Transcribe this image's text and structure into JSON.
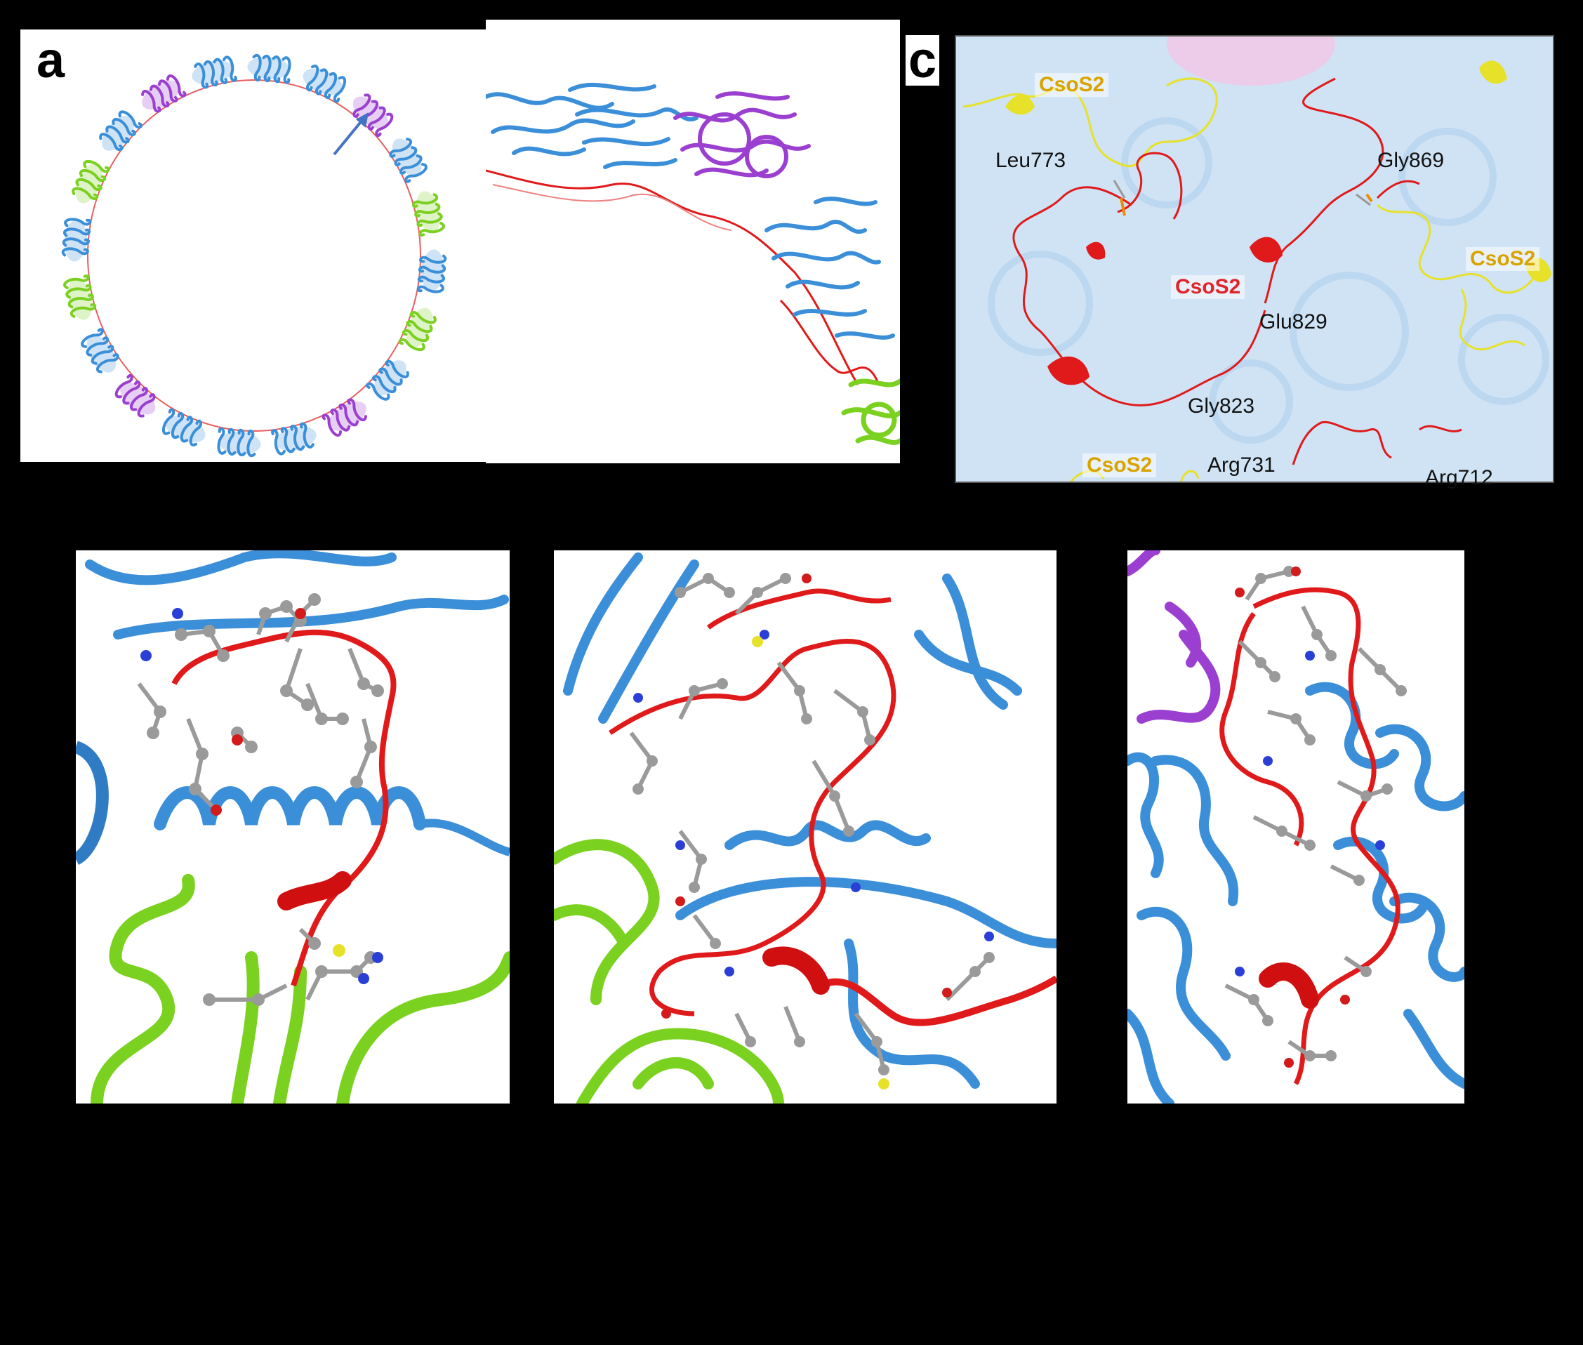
{
  "panel_labels": {
    "a": "a",
    "c": "c"
  },
  "panel_c": {
    "labels": {
      "csos2_top_left": "CsoS2",
      "leu773": "Leu773",
      "gly869": "Gly869",
      "csos2_right": "CsoS2",
      "csos2_center": "CsoS2",
      "glu829": "Glu829",
      "gly823": "Gly823",
      "csos2_bottom": "CsoS2",
      "arg731": "Arg731",
      "arg712": "Arg712"
    },
    "colors": {
      "csos2_yellow": "#d9a400",
      "csos2_red": "#e0242a"
    }
  },
  "colors": {
    "blue_protein": "#3b8fd9",
    "purple_protein": "#9b3fd1",
    "green_protein": "#7bd11f",
    "red_chain": "#e01a1a",
    "yellow_chain": "#e8e12a",
    "background_blue": "#cfe3f5",
    "arrow": "#4472c4"
  }
}
